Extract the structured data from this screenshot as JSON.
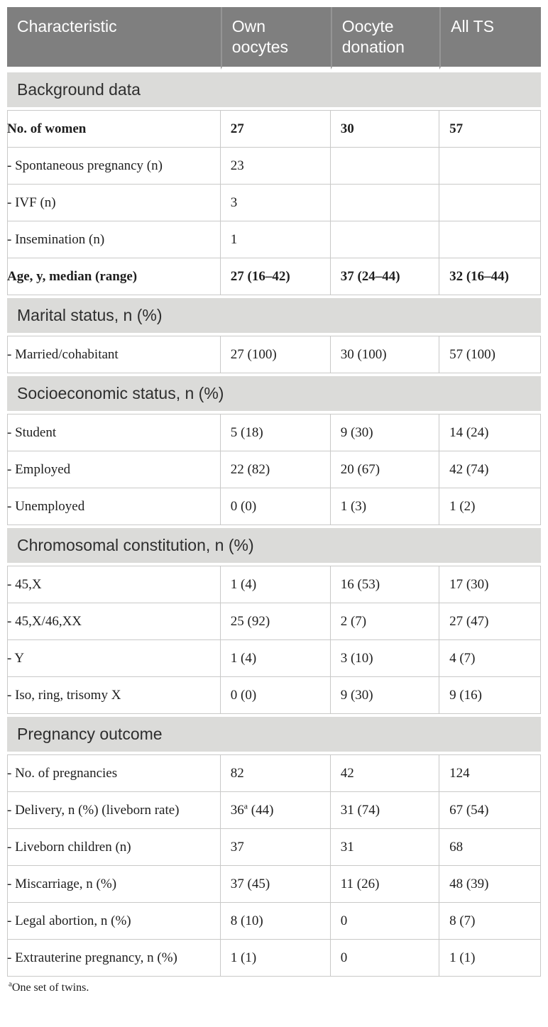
{
  "colors": {
    "header_bg": "#7f7f7f",
    "header_text": "#ffffff",
    "section_bg": "#dbdbd9",
    "border": "#c9c9c8",
    "body_text": "#1e1e1e"
  },
  "table": {
    "header": {
      "columns": [
        {
          "label": "Characteristic"
        },
        {
          "label": "Own oocytes"
        },
        {
          "label": "Oocyte donation"
        },
        {
          "label": "All TS"
        }
      ]
    },
    "sections": [
      {
        "title": "Background data",
        "rows": [
          {
            "label": "No. of women",
            "bold": true,
            "own": "27",
            "donation": "30",
            "all": "57"
          },
          {
            "label": "- Spontaneous pregnancy (n)",
            "own": "23",
            "donation": "",
            "all": ""
          },
          {
            "label": "- IVF (n)",
            "own": "3",
            "donation": "",
            "all": ""
          },
          {
            "label": "- Insemination (n)",
            "own": "1",
            "donation": "",
            "all": ""
          },
          {
            "label": "Age, y, median (range)",
            "bold": true,
            "own": "27 (16–42)",
            "donation": "37 (24–44)",
            "all": "32 (16–44)"
          }
        ]
      },
      {
        "title": "Marital status, n (%)",
        "rows": [
          {
            "label": "- Married/cohabitant",
            "own": "27 (100)",
            "donation": "30 (100)",
            "all": "57 (100)"
          }
        ]
      },
      {
        "title": "Socioeconomic status, n (%)",
        "rows": [
          {
            "label": "- Student",
            "own": "5 (18)",
            "donation": "9 (30)",
            "all": "14 (24)"
          },
          {
            "label": "- Employed",
            "own": "22 (82)",
            "donation": "20 (67)",
            "all": "42 (74)"
          },
          {
            "label": "- Unemployed",
            "own": "0 (0)",
            "donation": "1 (3)",
            "all": "1 (2)"
          }
        ]
      },
      {
        "title": "Chromosomal constitution, n (%)",
        "rows": [
          {
            "label": "- 45,X",
            "own": "1 (4)",
            "donation": "16 (53)",
            "all": "17 (30)"
          },
          {
            "label": "- 45,X/46,XX",
            "own": "25 (92)",
            "donation": "2 (7)",
            "all": "27 (47)"
          },
          {
            "label": "- Y",
            "own": "1 (4)",
            "donation": "3 (10)",
            "all": "4 (7)"
          },
          {
            "label": "- Iso, ring, trisomy X",
            "own": "0 (0)",
            "donation": "9 (30)",
            "all": "9 (16)"
          }
        ]
      },
      {
        "title": "Pregnancy outcome",
        "rows": [
          {
            "label": "- No. of pregnancies",
            "own": "82",
            "donation": "42",
            "all": "124"
          },
          {
            "label": "- Delivery, n (%) (liveborn rate)",
            "own_pre": "36",
            "own_sup": "a",
            "own_post": "(44)",
            "donation": "31 (74)",
            "all": "67 (54)"
          },
          {
            "label": "- Liveborn children (n)",
            "own": "37",
            "donation": "31",
            "all": "68"
          },
          {
            "label": "- Miscarriage, n (%)",
            "own": "37 (45)",
            "donation": "11 (26)",
            "all": "48 (39)"
          },
          {
            "label": "- Legal abortion, n (%)",
            "own": "8 (10)",
            "donation": "0",
            "all": "8 (7)"
          },
          {
            "label": "- Extrauterine pregnancy, n (%)",
            "own": "1 (1)",
            "donation": "0",
            "all": "1 (1)"
          }
        ]
      }
    ],
    "footnote": {
      "sup": "a",
      "text": "One set of twins."
    }
  }
}
